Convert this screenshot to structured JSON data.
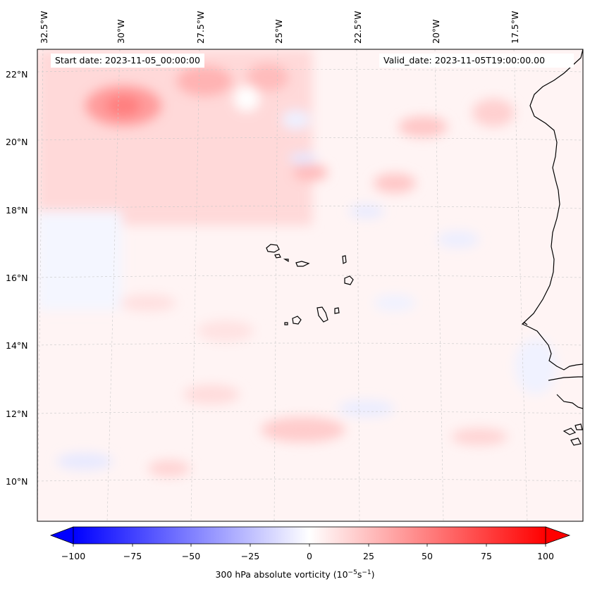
{
  "map": {
    "start_date": "Start date: 2023-11-05_00:00:00",
    "valid_date": "Valid_date: 2023-11-05T19:00:00.00",
    "lon_labels": [
      "32.5°W",
      "30°W",
      "27.5°W",
      "25°W",
      "22.5°W",
      "20°W",
      "17.5°W"
    ],
    "lat_labels": [
      "22°N",
      "20°N",
      "18°N",
      "16°N",
      "14°N",
      "12°N",
      "10°N"
    ]
  },
  "colorbar": {
    "label_prefix": "300 hPa absolute vorticity (10",
    "label_exp1": "−5",
    "label_mid": "s",
    "label_exp2": "−1",
    "label_suffix": ")",
    "ticks": [
      "−100",
      "−75",
      "−50",
      "−25",
      "0",
      "25",
      "50",
      "75",
      "100"
    ],
    "min": -100,
    "max": 100,
    "colors": {
      "negative": "#0000ff",
      "neutral": "#ffffff",
      "positive": "#ff0000"
    }
  }
}
